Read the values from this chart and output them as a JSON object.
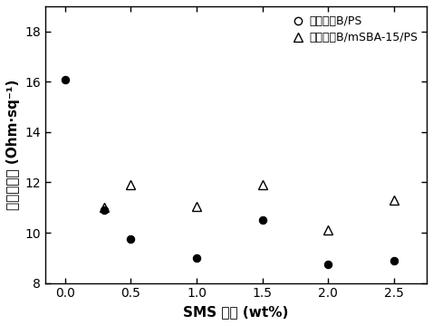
{
  "series1_label": "抗静电剂B/PS",
  "series2_label": "抗静电剂B/mSBA-15/PS",
  "series1_x": [
    0.0,
    0.3,
    0.5,
    1.0,
    1.5,
    2.0,
    2.5
  ],
  "series1_y": [
    16.1,
    10.9,
    9.75,
    9.0,
    10.5,
    8.75,
    8.9
  ],
  "series2_x": [
    0.3,
    0.5,
    1.0,
    1.5,
    2.0,
    2.5
  ],
  "series2_y": [
    11.0,
    11.9,
    11.05,
    11.9,
    10.1,
    11.3
  ],
  "xlabel": "SMS 含量 (wt%)",
  "ylabel": "表面电阵率 (Ohm·sq⁻¹)",
  "xlim": [
    -0.15,
    2.75
  ],
  "ylim": [
    8,
    19
  ],
  "yticks": [
    8,
    10,
    12,
    14,
    16,
    18
  ],
  "xticks": [
    0.0,
    0.5,
    1.0,
    1.5,
    2.0,
    2.5
  ],
  "background_color": "#ffffff",
  "marker_size_filled": 6,
  "marker_size_open": 7,
  "legend_marker_size_circle": 6,
  "legend_marker_size_triangle": 7
}
